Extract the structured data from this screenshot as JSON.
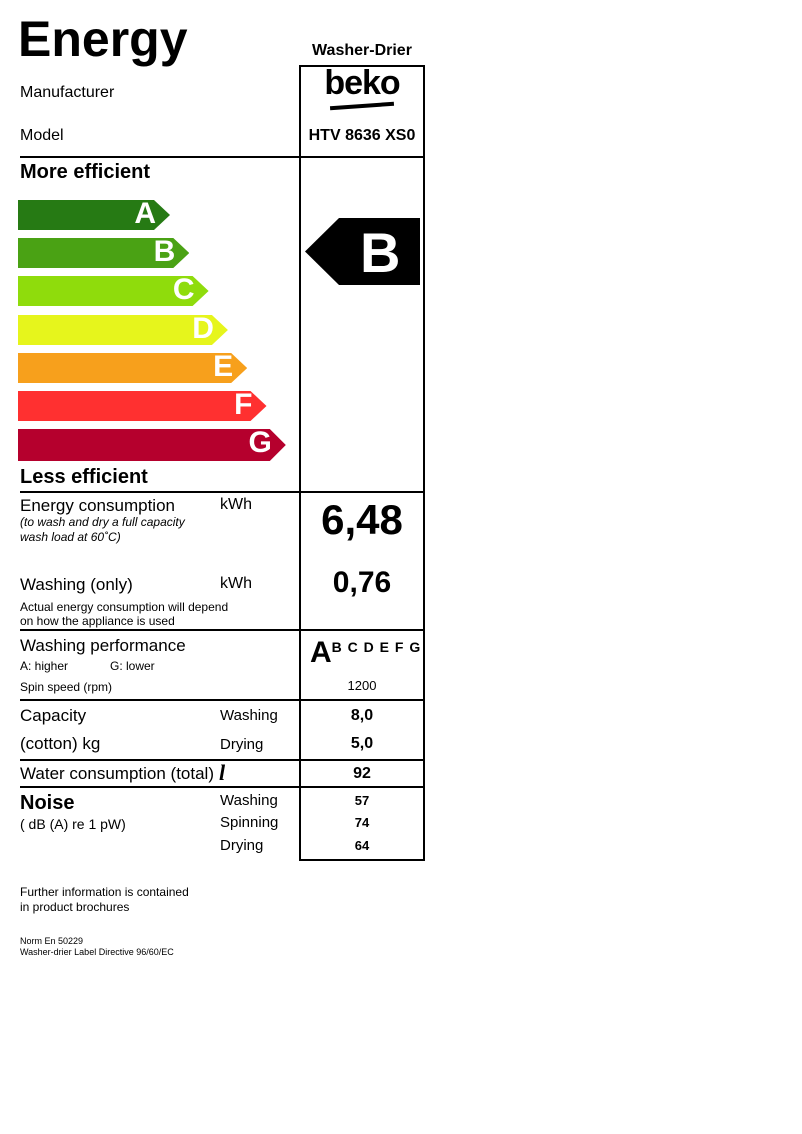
{
  "title": "Energy",
  "appliance_type": "Washer-Drier",
  "manufacturer": {
    "label": "Manufacturer",
    "value": "beko"
  },
  "model": {
    "label": "Model",
    "value": "HTV 8636 XS0"
  },
  "scale": {
    "top_label": "More efficient",
    "bottom_label": "Less efficient",
    "classes": [
      {
        "letter": "A",
        "color": "#267a14"
      },
      {
        "letter": "B",
        "color": "#4aa214"
      },
      {
        "letter": "C",
        "color": "#8fdc0c"
      },
      {
        "letter": "D",
        "color": "#e6f51c"
      },
      {
        "letter": "E",
        "color": "#f7a01c"
      },
      {
        "letter": "F",
        "color": "#ff3030"
      },
      {
        "letter": "G",
        "color": "#b5002d"
      }
    ]
  },
  "rating": "B",
  "energy": {
    "label": "Energy consumption",
    "unit": "kWh",
    "note1": "(to wash and dry a full capacity",
    "note2": "wash load at 60˚C)",
    "value": "6,48"
  },
  "washing_only": {
    "label": "Washing (only)",
    "unit": "kWh",
    "note1": "Actual energy consumption will depend",
    "note2": "on how the appliance is used",
    "value": "0,76"
  },
  "performance": {
    "label": "Washing performance",
    "higher": "A: higher",
    "lower": "G: lower",
    "selected": "A",
    "others": "B C D E F G",
    "spin_label": "Spin speed (rpm)",
    "spin_value": "1200"
  },
  "capacity": {
    "label1": "Capacity",
    "label2": "(cotton) kg",
    "washing_label": "Washing",
    "washing_value": "8,0",
    "drying_label": "Drying",
    "drying_value": "5,0"
  },
  "water": {
    "label": "Water consumption (total)",
    "unit": "l",
    "value": "92"
  },
  "noise": {
    "label": "Noise",
    "sub": "( dB (A) re 1 pW)",
    "washing_label": "Washing",
    "washing_value": "57",
    "spinning_label": "Spinning",
    "spinning_value": "74",
    "drying_label": "Drying",
    "drying_value": "64"
  },
  "footer": {
    "info1": "Further information is contained",
    "info2": "in product brochures",
    "norm": "Norm En 50229",
    "directive": "Washer-drier Label Directive 96/60/EC"
  }
}
